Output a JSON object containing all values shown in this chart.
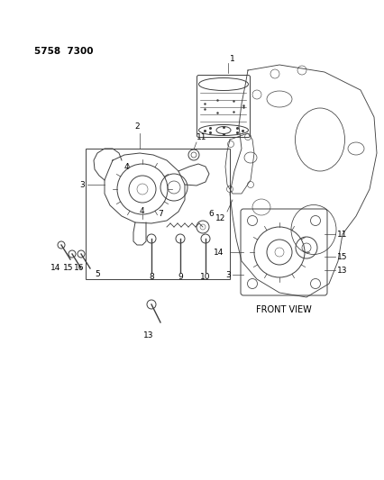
{
  "title": "5758  7300",
  "background_color": "#ffffff",
  "diagram_color": "#404040",
  "label_color": "#000000",
  "front_view_label": "FRONT VIEW",
  "fig_width": 4.27,
  "fig_height": 5.33,
  "dpi": 100
}
